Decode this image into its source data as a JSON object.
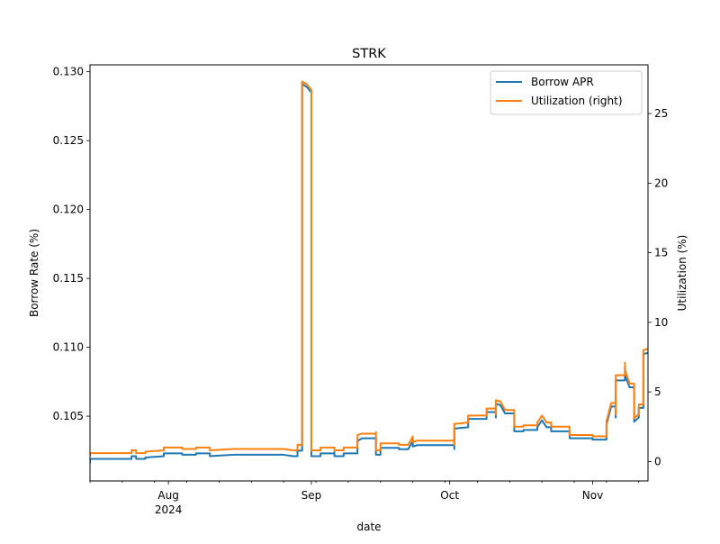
{
  "chart_data": {
    "type": "line",
    "title": "STRK",
    "xlabel": "date",
    "ylabel": "Borrow Rate (%)",
    "ylabel_right": "Utilization (%)",
    "legend_position": "top-right",
    "grid": false,
    "x_range": [
      "2024-07-15",
      "2024-11-13"
    ],
    "ylim": [
      0.1003,
      0.1305
    ],
    "ylim_right": [
      -1.4,
      28.5
    ],
    "x_ticks_major": [
      {
        "date": "2024-08-01",
        "label": "Aug",
        "sublabel": "2024"
      },
      {
        "date": "2024-09-01",
        "label": "Sep",
        "sublabel": ""
      },
      {
        "date": "2024-10-01",
        "label": "Oct",
        "sublabel": ""
      },
      {
        "date": "2024-11-01",
        "label": "Nov",
        "sublabel": ""
      }
    ],
    "x_ticks_minor": [
      "2024-07-15",
      "2024-07-22",
      "2024-07-29",
      "2024-08-05",
      "2024-08-12",
      "2024-08-19",
      "2024-08-26",
      "2024-09-02",
      "2024-09-09",
      "2024-09-16",
      "2024-09-23",
      "2024-09-30",
      "2024-10-07",
      "2024-10-14",
      "2024-10-21",
      "2024-10-28",
      "2024-11-04",
      "2024-11-11"
    ],
    "y_ticks_left": [
      {
        "value": 0.105,
        "label": "0.105"
      },
      {
        "value": 0.11,
        "label": "0.110"
      },
      {
        "value": 0.115,
        "label": "0.115"
      },
      {
        "value": 0.12,
        "label": "0.120"
      },
      {
        "value": 0.125,
        "label": "0.125"
      },
      {
        "value": 0.13,
        "label": "0.130"
      }
    ],
    "y_ticks_right": [
      {
        "value": 0,
        "label": "0"
      },
      {
        "value": 5,
        "label": "5"
      },
      {
        "value": 10,
        "label": "10"
      },
      {
        "value": 15,
        "label": "15"
      },
      {
        "value": 20,
        "label": "20"
      },
      {
        "value": 25,
        "label": "25"
      }
    ],
    "series": [
      {
        "name": "Borrow APR",
        "axis": "left",
        "color": "#1f77b4",
        "points": [
          [
            "2024-07-15",
            0.1016
          ],
          [
            "2024-07-15",
            0.1019
          ],
          [
            "2024-07-18",
            0.1019
          ],
          [
            "2024-07-24",
            0.1019
          ],
          [
            "2024-07-24",
            0.1021
          ],
          [
            "2024-07-25",
            0.1021
          ],
          [
            "2024-07-25",
            0.1019
          ],
          [
            "2024-07-27",
            0.1019
          ],
          [
            "2024-07-27",
            0.102
          ],
          [
            "2024-07-31",
            0.1021
          ],
          [
            "2024-07-31",
            0.1023
          ],
          [
            "2024-08-04",
            0.1023
          ],
          [
            "2024-08-04",
            0.1022
          ],
          [
            "2024-08-07",
            0.1022
          ],
          [
            "2024-08-07",
            0.1023
          ],
          [
            "2024-08-10",
            0.1023
          ],
          [
            "2024-08-10",
            0.1021
          ],
          [
            "2024-08-15",
            0.1022
          ],
          [
            "2024-08-26",
            0.1022
          ],
          [
            "2024-08-28",
            0.1021
          ],
          [
            "2024-08-29",
            0.1021
          ],
          [
            "2024-08-29",
            0.1025
          ],
          [
            "2024-08-30",
            0.1025
          ],
          [
            "2024-08-30",
            0.1291
          ],
          [
            "2024-08-31",
            0.1289
          ],
          [
            "2024-09-01",
            0.1285
          ],
          [
            "2024-09-01",
            0.128
          ],
          [
            "2024-09-01",
            0.128
          ],
          [
            "2024-09-01",
            0.1021
          ],
          [
            "2024-09-03",
            0.1021
          ],
          [
            "2024-09-03",
            0.1023
          ],
          [
            "2024-09-06",
            0.1023
          ],
          [
            "2024-09-06",
            0.1024
          ],
          [
            "2024-09-06",
            0.1021
          ],
          [
            "2024-09-08",
            0.1021
          ],
          [
            "2024-09-08",
            0.1023
          ],
          [
            "2024-09-11",
            0.1023
          ],
          [
            "2024-09-11",
            0.1032
          ],
          [
            "2024-09-12",
            0.1034
          ],
          [
            "2024-09-15",
            0.1034
          ],
          [
            "2024-09-15",
            0.1035
          ],
          [
            "2024-09-15",
            0.1022
          ],
          [
            "2024-09-16",
            0.1022
          ],
          [
            "2024-09-16",
            0.1027
          ],
          [
            "2024-09-20",
            0.1027
          ],
          [
            "2024-09-20",
            0.1026
          ],
          [
            "2024-09-22",
            0.1026
          ],
          [
            "2024-09-23",
            0.1032
          ],
          [
            "2024-09-23",
            0.1028
          ],
          [
            "2024-09-24",
            0.1029
          ],
          [
            "2024-10-02",
            0.1029
          ],
          [
            "2024-10-02",
            0.1026
          ],
          [
            "2024-10-02",
            0.1041
          ],
          [
            "2024-10-05",
            0.1042
          ],
          [
            "2024-10-05",
            0.1048
          ],
          [
            "2024-10-09",
            0.1048
          ],
          [
            "2024-10-09",
            0.1053
          ],
          [
            "2024-10-11",
            0.1053
          ],
          [
            "2024-10-11",
            0.1049
          ],
          [
            "2024-10-11",
            0.1059
          ],
          [
            "2024-10-12",
            0.1058
          ],
          [
            "2024-10-13",
            0.1052
          ],
          [
            "2024-10-15",
            0.1052
          ],
          [
            "2024-10-15",
            0.1039
          ],
          [
            "2024-10-17",
            0.1039
          ],
          [
            "2024-10-17",
            0.104
          ],
          [
            "2024-10-20",
            0.104
          ],
          [
            "2024-10-20",
            0.1042
          ],
          [
            "2024-10-21",
            0.1047
          ],
          [
            "2024-10-22",
            0.1042
          ],
          [
            "2024-10-23",
            0.1042
          ],
          [
            "2024-10-23",
            0.1039
          ],
          [
            "2024-10-27",
            0.1039
          ],
          [
            "2024-10-27",
            0.1034
          ],
          [
            "2024-11-01",
            0.1034
          ],
          [
            "2024-11-01",
            0.1033
          ],
          [
            "2024-11-04",
            0.1033
          ],
          [
            "2024-11-04",
            0.1044
          ],
          [
            "2024-11-05",
            0.1057
          ],
          [
            "2024-11-06",
            0.1057
          ],
          [
            "2024-11-06",
            0.1049
          ],
          [
            "2024-11-06",
            0.1076
          ],
          [
            "2024-11-08",
            0.1076
          ],
          [
            "2024-11-08",
            0.1085
          ],
          [
            "2024-11-08",
            0.108
          ],
          [
            "2024-11-09",
            0.1071
          ],
          [
            "2024-11-10",
            0.1071
          ],
          [
            "2024-11-10",
            0.105
          ],
          [
            "2024-11-10",
            0.1046
          ],
          [
            "2024-11-11",
            0.1049
          ],
          [
            "2024-11-11",
            0.1056
          ],
          [
            "2024-11-12",
            0.1056
          ],
          [
            "2024-11-12",
            0.1095
          ],
          [
            "2024-11-13",
            0.1096
          ]
        ]
      },
      {
        "name": "Utilization (right)",
        "axis": "right",
        "color": "#ff7f0e",
        "points": [
          [
            "2024-07-15",
            0.4
          ],
          [
            "2024-07-15",
            0.6
          ],
          [
            "2024-07-18",
            0.6
          ],
          [
            "2024-07-24",
            0.6
          ],
          [
            "2024-07-24",
            0.8
          ],
          [
            "2024-07-25",
            0.8
          ],
          [
            "2024-07-25",
            0.6
          ],
          [
            "2024-07-27",
            0.6
          ],
          [
            "2024-07-27",
            0.7
          ],
          [
            "2024-07-31",
            0.8
          ],
          [
            "2024-07-31",
            1.0
          ],
          [
            "2024-08-04",
            1.0
          ],
          [
            "2024-08-04",
            0.9
          ],
          [
            "2024-08-07",
            0.9
          ],
          [
            "2024-08-07",
            1.0
          ],
          [
            "2024-08-10",
            1.0
          ],
          [
            "2024-08-10",
            0.8
          ],
          [
            "2024-08-15",
            0.9
          ],
          [
            "2024-08-26",
            0.9
          ],
          [
            "2024-08-28",
            0.8
          ],
          [
            "2024-08-29",
            0.8
          ],
          [
            "2024-08-29",
            1.2
          ],
          [
            "2024-08-30",
            1.2
          ],
          [
            "2024-08-30",
            27.3
          ],
          [
            "2024-08-31",
            27.1
          ],
          [
            "2024-09-01",
            26.7
          ],
          [
            "2024-09-01",
            26.2
          ],
          [
            "2024-09-01",
            26.2
          ],
          [
            "2024-09-01",
            0.8
          ],
          [
            "2024-09-03",
            0.8
          ],
          [
            "2024-09-03",
            1.0
          ],
          [
            "2024-09-06",
            1.0
          ],
          [
            "2024-09-06",
            0.8
          ],
          [
            "2024-09-08",
            0.8
          ],
          [
            "2024-09-08",
            1.0
          ],
          [
            "2024-09-11",
            1.0
          ],
          [
            "2024-09-11",
            1.9
          ],
          [
            "2024-09-12",
            2.0
          ],
          [
            "2024-09-15",
            2.0
          ],
          [
            "2024-09-15",
            2.1
          ],
          [
            "2024-09-15",
            0.8
          ],
          [
            "2024-09-16",
            0.8
          ],
          [
            "2024-09-16",
            1.3
          ],
          [
            "2024-09-20",
            1.3
          ],
          [
            "2024-09-20",
            1.2
          ],
          [
            "2024-09-22",
            1.2
          ],
          [
            "2024-09-23",
            1.8
          ],
          [
            "2024-09-23",
            1.4
          ],
          [
            "2024-09-24",
            1.5
          ],
          [
            "2024-10-02",
            1.5
          ],
          [
            "2024-10-02",
            1.2
          ],
          [
            "2024-10-02",
            2.7
          ],
          [
            "2024-10-05",
            2.8
          ],
          [
            "2024-10-05",
            3.3
          ],
          [
            "2024-10-09",
            3.3
          ],
          [
            "2024-10-09",
            3.8
          ],
          [
            "2024-10-11",
            3.8
          ],
          [
            "2024-10-11",
            3.4
          ],
          [
            "2024-10-11",
            4.4
          ],
          [
            "2024-10-12",
            4.3
          ],
          [
            "2024-10-13",
            3.7
          ],
          [
            "2024-10-15",
            3.7
          ],
          [
            "2024-10-15",
            2.5
          ],
          [
            "2024-10-17",
            2.5
          ],
          [
            "2024-10-17",
            2.6
          ],
          [
            "2024-10-20",
            2.6
          ],
          [
            "2024-10-20",
            2.8
          ],
          [
            "2024-10-21",
            3.3
          ],
          [
            "2024-10-22",
            2.8
          ],
          [
            "2024-10-23",
            2.8
          ],
          [
            "2024-10-23",
            2.5
          ],
          [
            "2024-10-27",
            2.5
          ],
          [
            "2024-10-27",
            1.9
          ],
          [
            "2024-11-01",
            1.9
          ],
          [
            "2024-11-01",
            1.8
          ],
          [
            "2024-11-04",
            1.8
          ],
          [
            "2024-11-04",
            2.9
          ],
          [
            "2024-11-05",
            4.2
          ],
          [
            "2024-11-06",
            4.2
          ],
          [
            "2024-11-06",
            3.4
          ],
          [
            "2024-11-06",
            6.2
          ],
          [
            "2024-11-08",
            6.2
          ],
          [
            "2024-11-08",
            7.1
          ],
          [
            "2024-11-08",
            6.6
          ],
          [
            "2024-11-09",
            5.6
          ],
          [
            "2024-11-10",
            5.6
          ],
          [
            "2024-11-10",
            3.5
          ],
          [
            "2024-11-10",
            3.1
          ],
          [
            "2024-11-11",
            3.4
          ],
          [
            "2024-11-11",
            4.1
          ],
          [
            "2024-11-12",
            4.1
          ],
          [
            "2024-11-12",
            8.0
          ],
          [
            "2024-11-13",
            8.1
          ]
        ]
      }
    ]
  }
}
